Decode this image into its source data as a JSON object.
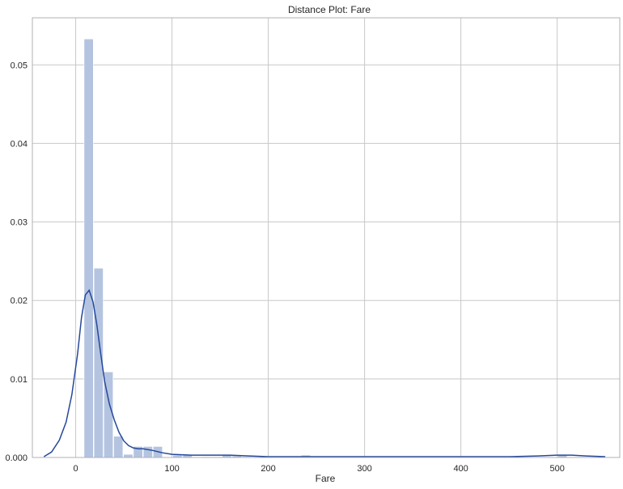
{
  "chart_data": {
    "type": "bar",
    "title": "Distance Plot: Fare",
    "xlabel": "Fare",
    "ylabel": "",
    "xlim": [
      -45,
      565
    ],
    "ylim": [
      0,
      0.056
    ],
    "grid": true,
    "legend": "none",
    "colors": {
      "bar_fill": "#b4c4e0",
      "kde_line": "#26489a",
      "grid": "#c8c8c8",
      "spine": "#b0b0b0"
    },
    "x_ticks": [
      {
        "value": 0,
        "label": "0"
      },
      {
        "value": 100,
        "label": "100"
      },
      {
        "value": 200,
        "label": "200"
      },
      {
        "value": 300,
        "label": "300"
      },
      {
        "value": 400,
        "label": "400"
      },
      {
        "value": 500,
        "label": "500"
      }
    ],
    "y_ticks": [
      {
        "value": 0,
        "label": "0.000"
      },
      {
        "value": 0.01,
        "label": "0.01"
      },
      {
        "value": 0.02,
        "label": "0.02"
      },
      {
        "value": 0.03,
        "label": "0.03"
      },
      {
        "value": 0.04,
        "label": "0.04"
      },
      {
        "value": 0.05,
        "label": "0.05"
      }
    ],
    "histogram": {
      "bin_width": 10.25,
      "bin_start": 8.7,
      "values": [
        0.0533,
        0.0241,
        0.0109,
        0.0027,
        0.0004,
        0.0014,
        0.0014,
        0.0014,
        0.0,
        0.0003,
        0.0003,
        0.0,
        0.0001,
        0.0001,
        0.0003,
        0.0002,
        0.0001,
        0.0,
        0.0,
        0.0,
        0.0,
        0.0,
        0.0003,
        0.0,
        0.0,
        0.0,
        0.0,
        0.0,
        0.0,
        0.0,
        0.0,
        0.0,
        0.0,
        0.0,
        0.0,
        0.0,
        0.0,
        0.0,
        0.0,
        0.0,
        0.0,
        0.0,
        0.0,
        0.0,
        0.0,
        0.0,
        0.0,
        0.0,
        0.0003
      ]
    },
    "kde": {
      "x": [
        -33,
        -25,
        -17,
        -10,
        -4,
        2,
        6,
        10,
        14,
        18,
        22,
        26,
        30,
        35,
        40,
        45,
        50,
        55,
        60,
        65,
        70,
        80,
        90,
        100,
        120,
        140,
        160,
        180,
        200,
        220,
        240,
        260,
        300,
        350,
        400,
        450,
        480,
        500,
        515,
        530,
        550
      ],
      "y": [
        0.0001,
        0.0007,
        0.0022,
        0.0045,
        0.008,
        0.0132,
        0.0178,
        0.0207,
        0.0213,
        0.0198,
        0.0169,
        0.0132,
        0.0097,
        0.0068,
        0.0048,
        0.0032,
        0.0021,
        0.0015,
        0.0012,
        0.0011,
        0.0011,
        0.0009,
        0.0006,
        0.0004,
        0.0003,
        0.0003,
        0.0003,
        0.0002,
        0.0001,
        0.0001,
        0.0001,
        0.0001,
        0.0001,
        0.0001,
        0.0001,
        0.0001,
        0.0002,
        0.0003,
        0.0003,
        0.0002,
        0.0001
      ]
    }
  }
}
